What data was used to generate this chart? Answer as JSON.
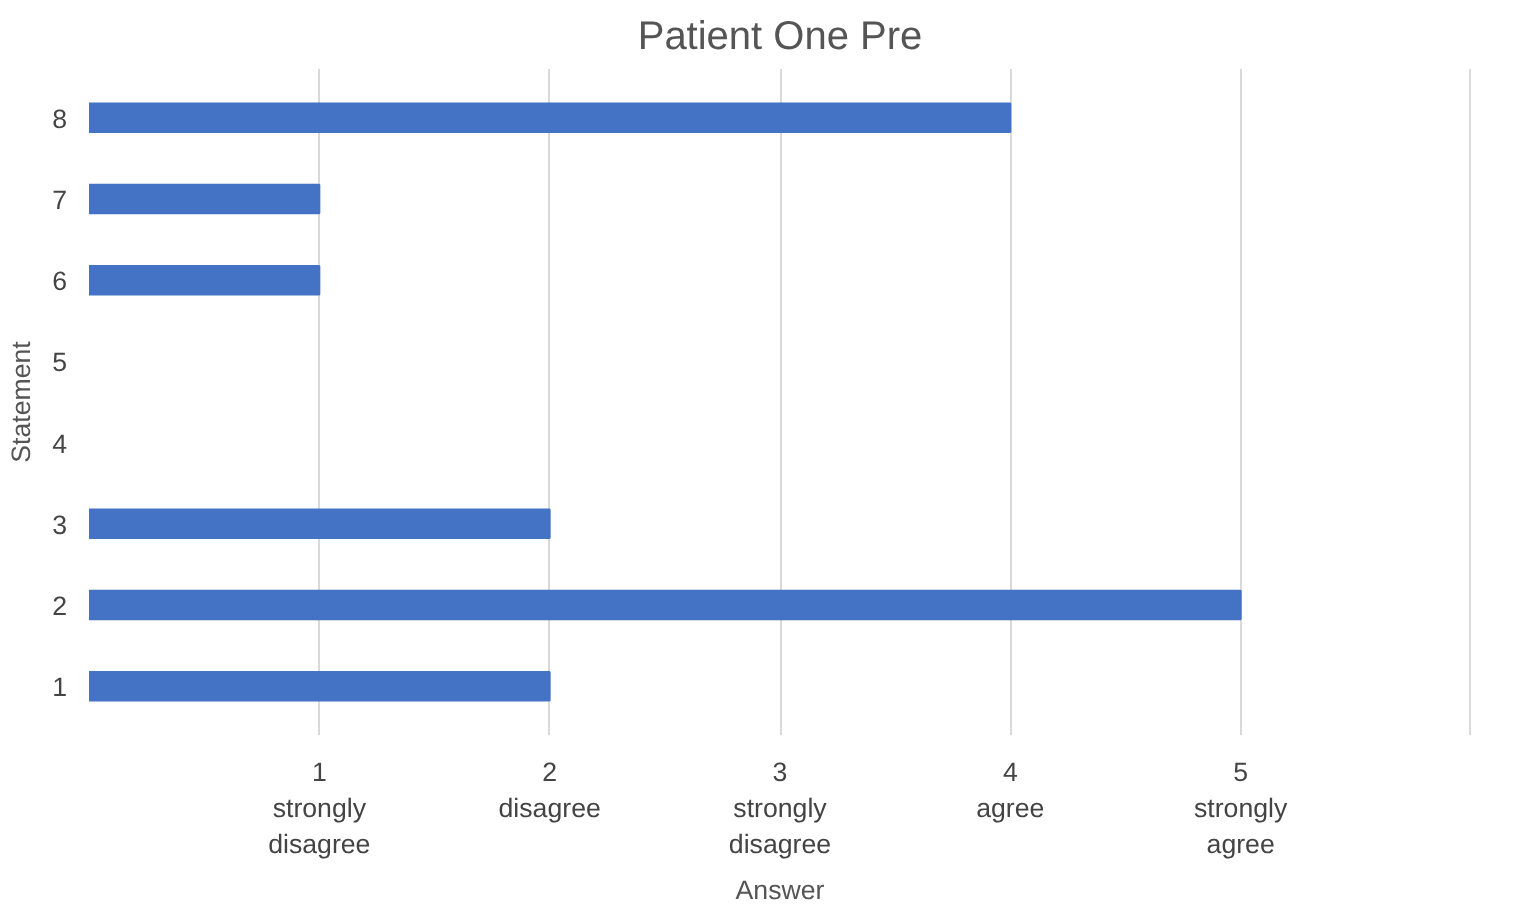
{
  "chart_data": {
    "type": "bar",
    "orientation": "horizontal",
    "title": "Patient One Pre",
    "xlabel": "Answer",
    "ylabel": "Statement",
    "categories": [
      "8",
      "7",
      "6",
      "5",
      "4",
      "3",
      "2",
      "1"
    ],
    "values": [
      4,
      1,
      1,
      null,
      null,
      2,
      5,
      2
    ],
    "color": "#4472c4",
    "xlim": [
      0,
      6
    ],
    "xticks": [
      {
        "value": 1,
        "label": "1\nstrongly\ndisagree"
      },
      {
        "value": 2,
        "label": "2\ndisagree"
      },
      {
        "value": 3,
        "label": "3\nstrongly\ndisagree"
      },
      {
        "value": 4,
        "label": "4\nagree"
      },
      {
        "value": 5,
        "label": "5\nstrongly\nagree"
      },
      {
        "value": 6,
        "label": null
      }
    ],
    "grid": "x",
    "legend": false
  }
}
